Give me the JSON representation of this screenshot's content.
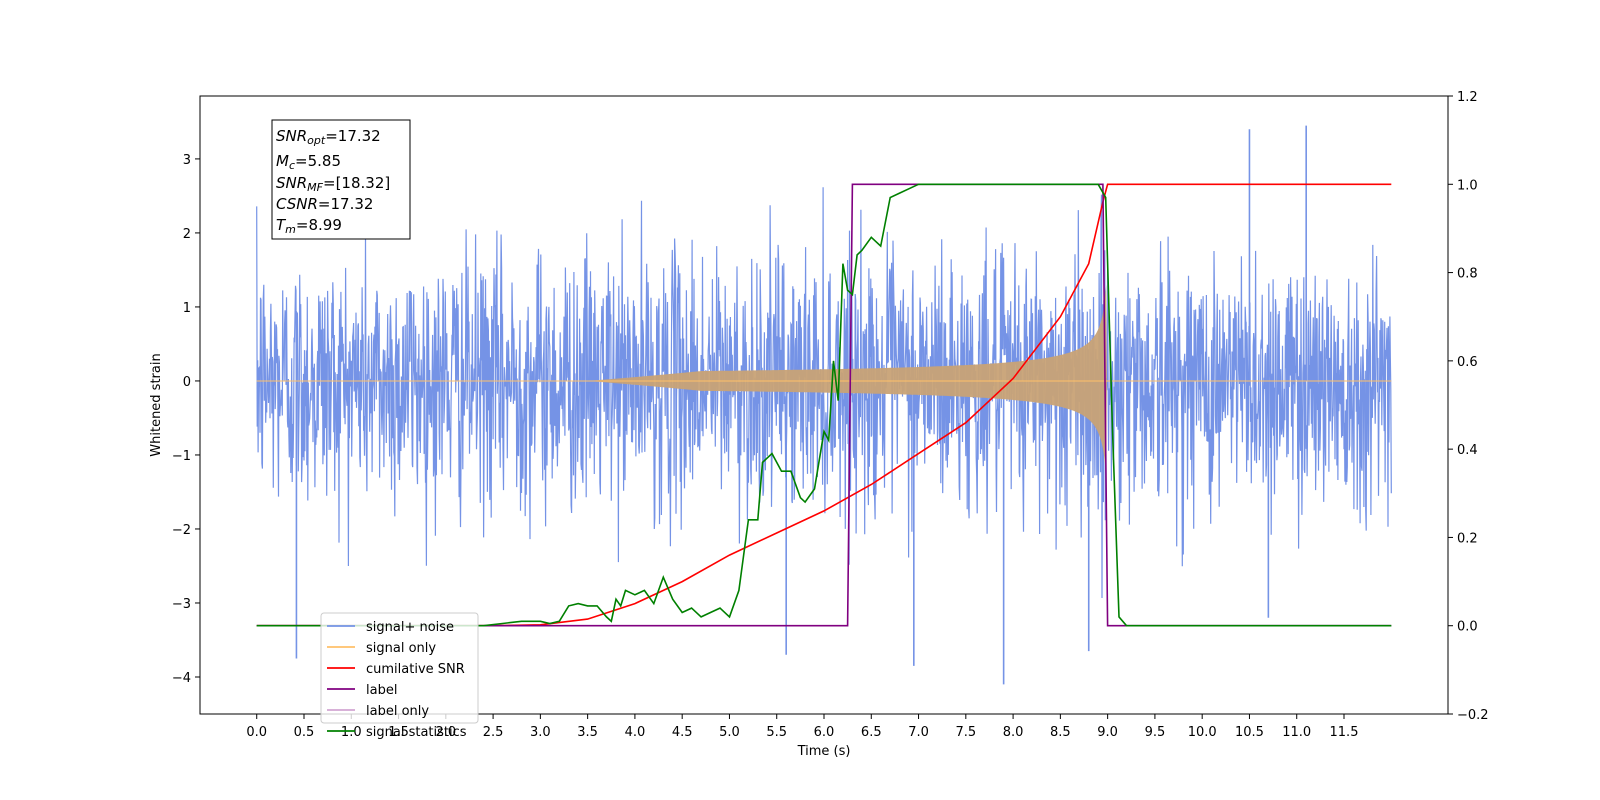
{
  "chart_data": {
    "type": "line",
    "xlabel": "Time (s)",
    "ylabel_left": "Whitened strain",
    "ylabel_right": "",
    "xlim": [
      -0.6,
      12.6
    ],
    "ylim_left": [
      -4.5,
      3.85
    ],
    "ylim_right": [
      -0.2,
      1.2
    ],
    "x_ticks": [
      "0.0",
      "0.5",
      "1.0",
      "1.5",
      "2.0",
      "2.5",
      "3.0",
      "3.5",
      "4.0",
      "4.5",
      "5.0",
      "5.5",
      "6.0",
      "6.5",
      "7.0",
      "7.5",
      "8.0",
      "8.5",
      "9.0",
      "9.5",
      "10.0",
      "10.5",
      "11.0",
      "11.5"
    ],
    "y_ticks_left": [
      "3",
      "2",
      "1",
      "0",
      "−1",
      "−2",
      "−3",
      "−4"
    ],
    "y_ticks_right": [
      "1.2",
      "1.0",
      "0.8",
      "0.6",
      "0.4",
      "0.2",
      "0.0",
      "−0.2"
    ],
    "grid": false,
    "legend_location": "lower-left",
    "colors": {
      "noise": "#7593e6",
      "signal": "#c8a276",
      "signal_only_legend": "#ffc069",
      "cumulative_snr": "#ff0000",
      "label": "#800080",
      "label_only_legend": "#d3a6d3",
      "statistics": "#008000"
    },
    "series": [
      {
        "name": "signal+ noise",
        "axis": "left",
        "description_values": {
          "x_range": [
            0.0,
            12.0
          ],
          "typical_range": [
            -2.0,
            2.0
          ],
          "spikes": [
            [
              0.42,
              -3.75
            ],
            [
              5.6,
              -3.7
            ],
            [
              6.95,
              -3.85
            ],
            [
              7.9,
              -4.1
            ],
            [
              8.8,
              -3.65
            ],
            [
              10.5,
              3.4
            ],
            [
              11.1,
              3.45
            ],
            [
              10.7,
              -3.2
            ]
          ]
        }
      },
      {
        "name": "signal only",
        "axis": "left",
        "description_values": {
          "x_range": [
            0.0,
            12.0
          ],
          "onset": 3.5,
          "peak_time": 8.99,
          "peak_amplitude": 1.3
        }
      },
      {
        "name": "cumilative SNR",
        "axis": "right",
        "x": [
          0.0,
          2.5,
          3.0,
          3.5,
          4.0,
          4.5,
          5.0,
          5.5,
          6.0,
          6.5,
          7.0,
          7.5,
          8.0,
          8.5,
          8.8,
          8.95,
          9.0,
          12.0
        ],
        "y": [
          0.0,
          0.0,
          0.002,
          0.015,
          0.05,
          0.1,
          0.16,
          0.21,
          0.26,
          0.32,
          0.39,
          0.46,
          0.56,
          0.7,
          0.82,
          0.96,
          1.0,
          1.0
        ]
      },
      {
        "name": "label",
        "axis": "right",
        "x": [
          0.0,
          6.25,
          6.3,
          8.95,
          9.0,
          12.0
        ],
        "y": [
          0.0,
          0.0,
          1.0,
          1.0,
          0.0,
          0.0
        ]
      },
      {
        "name": "signal statistics",
        "axis": "right",
        "x": [
          0.0,
          2.4,
          2.6,
          2.8,
          3.0,
          3.1,
          3.2,
          3.3,
          3.4,
          3.5,
          3.6,
          3.7,
          3.75,
          3.8,
          3.85,
          3.9,
          4.0,
          4.1,
          4.2,
          4.3,
          4.4,
          4.5,
          4.6,
          4.7,
          4.8,
          4.9,
          5.0,
          5.1,
          5.2,
          5.3,
          5.35,
          5.45,
          5.55,
          5.65,
          5.75,
          5.8,
          5.9,
          6.0,
          6.05,
          6.1,
          6.15,
          6.2,
          6.25,
          6.3,
          6.35,
          6.4,
          6.5,
          6.6,
          6.7,
          6.8,
          6.9,
          7.0,
          7.1,
          8.9,
          8.98,
          9.05,
          9.12,
          9.2,
          9.3,
          12.0
        ],
        "y": [
          0.0,
          0.0,
          0.005,
          0.01,
          0.01,
          0.005,
          0.01,
          0.045,
          0.05,
          0.045,
          0.045,
          0.02,
          0.01,
          0.06,
          0.045,
          0.08,
          0.07,
          0.08,
          0.05,
          0.11,
          0.06,
          0.03,
          0.04,
          0.02,
          0.03,
          0.04,
          0.02,
          0.08,
          0.24,
          0.24,
          0.37,
          0.39,
          0.35,
          0.35,
          0.29,
          0.28,
          0.31,
          0.44,
          0.42,
          0.6,
          0.51,
          0.82,
          0.76,
          0.75,
          0.84,
          0.85,
          0.88,
          0.86,
          0.97,
          0.98,
          0.99,
          1.0,
          1.0,
          1.0,
          0.97,
          0.45,
          0.02,
          0.0,
          0.0,
          0.0
        ]
      }
    ],
    "legend": [
      "signal+ noise",
      "signal only",
      "cumilative SNR",
      "label",
      "label only",
      "signal statistics"
    ],
    "info_box": {
      "snr_opt_main": "SNR",
      "snr_opt_sub": "opt",
      "snr_opt_val": "=17.32",
      "mc_main": "M",
      "mc_sub": "c",
      "mc_val": "=5.85",
      "snr_mf_main": "SNR",
      "snr_mf_sub": "MF",
      "snr_mf_val": "=[18.32]",
      "csnr_main": "CSNR",
      "csnr_val": "=17.32",
      "tm_main": "T",
      "tm_sub": "m",
      "tm_val": "=8.99"
    }
  }
}
